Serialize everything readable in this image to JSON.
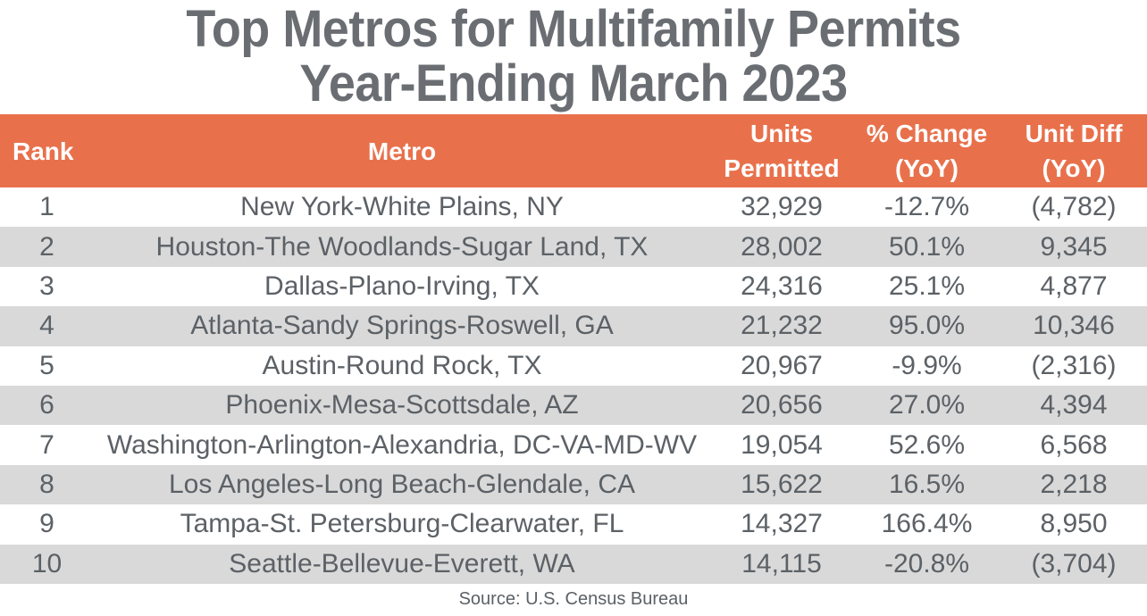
{
  "title": {
    "line1": "Top Metros for Multifamily Permits",
    "line2": "Year-Ending March 2023"
  },
  "source": "Source: U.S. Census Bureau",
  "colors": {
    "header_bg": "#E8714C",
    "header_text": "#FFFFFF",
    "alt_row_bg": "#D9D9D9",
    "title_text": "#6A6E73",
    "body_text": "#5C6166"
  },
  "table": {
    "headers": {
      "rank": "Rank",
      "metro": "Metro",
      "units_line1": "Units",
      "units_line2": "Permitted",
      "pct_line1": "% Change",
      "pct_line2": "(YoY)",
      "diff_line1": "Unit Diff",
      "diff_line2": "(YoY)"
    },
    "rows": [
      {
        "rank": "1",
        "metro": "New York-White Plains, NY",
        "units": "32,929",
        "pct": "-12.7%",
        "diff": "(4,782)"
      },
      {
        "rank": "2",
        "metro": "Houston-The Woodlands-Sugar Land, TX",
        "units": "28,002",
        "pct": "50.1%",
        "diff": "9,345"
      },
      {
        "rank": "3",
        "metro": "Dallas-Plano-Irving, TX",
        "units": "24,316",
        "pct": "25.1%",
        "diff": "4,877"
      },
      {
        "rank": "4",
        "metro": "Atlanta-Sandy Springs-Roswell, GA",
        "units": "21,232",
        "pct": "95.0%",
        "diff": "10,346"
      },
      {
        "rank": "5",
        "metro": "Austin-Round Rock, TX",
        "units": "20,967",
        "pct": "-9.9%",
        "diff": "(2,316)"
      },
      {
        "rank": "6",
        "metro": "Phoenix-Mesa-Scottsdale, AZ",
        "units": "20,656",
        "pct": "27.0%",
        "diff": "4,394"
      },
      {
        "rank": "7",
        "metro": "Washington-Arlington-Alexandria, DC-VA-MD-WV",
        "units": "19,054",
        "pct": "52.6%",
        "diff": "6,568"
      },
      {
        "rank": "8",
        "metro": "Los Angeles-Long Beach-Glendale, CA",
        "units": "15,622",
        "pct": "16.5%",
        "diff": "2,218"
      },
      {
        "rank": "9",
        "metro": "Tampa-St. Petersburg-Clearwater, FL",
        "units": "14,327",
        "pct": "166.4%",
        "diff": "8,950"
      },
      {
        "rank": "10",
        "metro": "Seattle-Bellevue-Everett, WA",
        "units": "14,115",
        "pct": "-20.8%",
        "diff": "(3,704)"
      }
    ]
  },
  "chart_data": {
    "type": "table",
    "title": "Top Metros for Multifamily Permits Year-Ending March 2023",
    "columns": [
      "Rank",
      "Metro",
      "Units Permitted",
      "% Change (YoY)",
      "Unit Diff (YoY)"
    ],
    "rows": [
      [
        1,
        "New York-White Plains, NY",
        32929,
        -12.7,
        -4782
      ],
      [
        2,
        "Houston-The Woodlands-Sugar Land, TX",
        28002,
        50.1,
        9345
      ],
      [
        3,
        "Dallas-Plano-Irving, TX",
        24316,
        25.1,
        4877
      ],
      [
        4,
        "Atlanta-Sandy Springs-Roswell, GA",
        21232,
        95.0,
        10346
      ],
      [
        5,
        "Austin-Round Rock, TX",
        20967,
        -9.9,
        -2316
      ],
      [
        6,
        "Phoenix-Mesa-Scottsdale, AZ",
        20656,
        27.0,
        4394
      ],
      [
        7,
        "Washington-Arlington-Alexandria, DC-VA-MD-WV",
        19054,
        52.6,
        6568
      ],
      [
        8,
        "Los Angeles-Long Beach-Glendale, CA",
        15622,
        16.5,
        2218
      ],
      [
        9,
        "Tampa-St. Petersburg-Clearwater, FL",
        14327,
        166.4,
        8950
      ],
      [
        10,
        "Seattle-Bellevue-Everett, WA",
        14115,
        -20.8,
        -3704
      ]
    ],
    "notes": "Negative Unit Diff values shown in parentheses",
    "source": "Source: U.S. Census Bureau"
  }
}
